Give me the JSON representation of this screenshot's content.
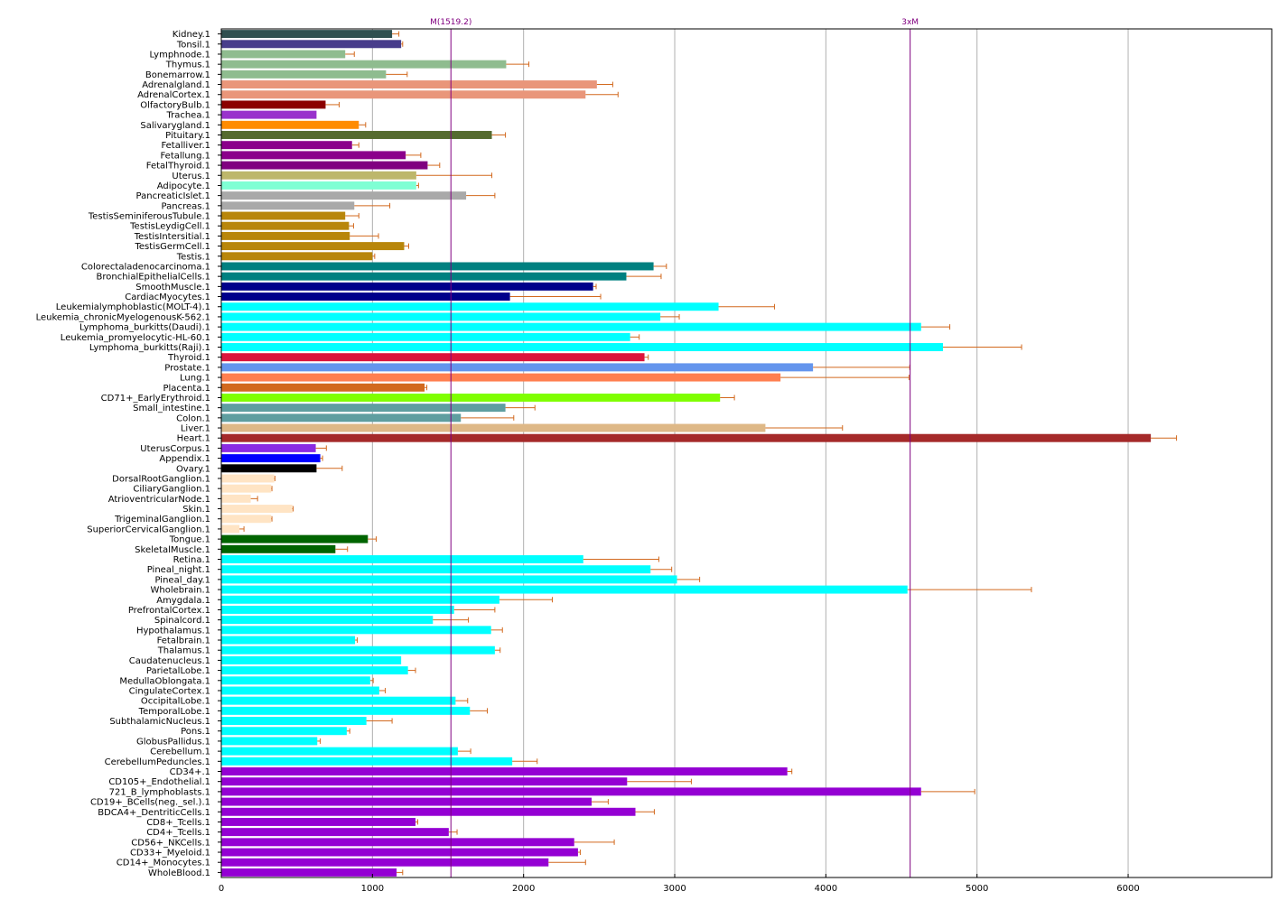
{
  "chart_data": {
    "type": "bar",
    "orientation": "horizontal",
    "xlim": [
      0,
      6950
    ],
    "x_ticks": [
      0,
      1000,
      2000,
      3000,
      4000,
      5000,
      6000
    ],
    "grid": "vertical",
    "error_bar_color": "#d2691e",
    "reference_lines": [
      {
        "label": "M(1519.2)",
        "value": 1519.2,
        "color": "#800080"
      },
      {
        "label": "3xM",
        "value": 4557.6,
        "color": "#800080"
      }
    ],
    "categories": [
      {
        "label": "Kidney.1",
        "value": 1130,
        "error": 45,
        "color": "#2f4f4f"
      },
      {
        "label": "Tonsil.1",
        "value": 1190,
        "error": 10,
        "color": "#483d8b"
      },
      {
        "label": "Lymphnode.1",
        "value": 820,
        "error": 60,
        "color": "#8fbc8f"
      },
      {
        "label": "Thymus.1",
        "value": 1885,
        "error": 150,
        "color": "#8fbc8f"
      },
      {
        "label": "Bonemarrow.1",
        "value": 1090,
        "error": 140,
        "color": "#8fbc8f"
      },
      {
        "label": "Adrenalgland.1",
        "value": 2485,
        "error": 105,
        "color": "#e9967a"
      },
      {
        "label": "AdrenalCortex.1",
        "value": 2410,
        "error": 215,
        "color": "#e9967a"
      },
      {
        "label": "OlfactoryBulb.1",
        "value": 690,
        "error": 90,
        "color": "#8b0000"
      },
      {
        "label": "Trachea.1",
        "value": 630,
        "error": 0,
        "color": "#9932cc"
      },
      {
        "label": "Salivarygland.1",
        "value": 910,
        "error": 45,
        "color": "#ff8c00"
      },
      {
        "label": "Pituitary.1",
        "value": 1790,
        "error": 90,
        "color": "#556b2f"
      },
      {
        "label": "Fetalliver.1",
        "value": 865,
        "error": 45,
        "color": "#8b008b"
      },
      {
        "label": "Fetallung.1",
        "value": 1220,
        "error": 100,
        "color": "#8b008b"
      },
      {
        "label": "FetalThyroid.1",
        "value": 1365,
        "error": 80,
        "color": "#800080"
      },
      {
        "label": "Uterus.1",
        "value": 1290,
        "error": 500,
        "color": "#bdb76b"
      },
      {
        "label": "Adipocyte.1",
        "value": 1290,
        "error": 15,
        "color": "#7fffd4"
      },
      {
        "label": "PancreaticIslet.1",
        "value": 1620,
        "error": 190,
        "color": "#a9a9a9"
      },
      {
        "label": "Pancreas.1",
        "value": 880,
        "error": 235,
        "color": "#a9a9a9"
      },
      {
        "label": "TestisSeminiferousTubule.1",
        "value": 820,
        "error": 90,
        "color": "#b8860b"
      },
      {
        "label": "TestisLeydigCell.1",
        "value": 845,
        "error": 30,
        "color": "#b8860b"
      },
      {
        "label": "TestisIntersitial.1",
        "value": 850,
        "error": 190,
        "color": "#b8860b"
      },
      {
        "label": "TestisGermCell.1",
        "value": 1210,
        "error": 30,
        "color": "#b8860b"
      },
      {
        "label": "Testis.1",
        "value": 1000,
        "error": 15,
        "color": "#b8860b"
      },
      {
        "label": "Colorectaladenocarcinoma.1",
        "value": 2860,
        "error": 85,
        "color": "#008080"
      },
      {
        "label": "BronchialEpithelialCells.1",
        "value": 2680,
        "error": 230,
        "color": "#008080"
      },
      {
        "label": "SmoothMuscle.1",
        "value": 2460,
        "error": 20,
        "color": "#00008b"
      },
      {
        "label": "CardiacMyocytes.1",
        "value": 1910,
        "error": 600,
        "color": "#00008b"
      },
      {
        "label": "Leukemialymphoblastic(MOLT-4).1",
        "value": 3290,
        "error": 370,
        "color": "#00ffff"
      },
      {
        "label": "Leukemia_chronicMyelogenousK-562.1",
        "value": 2905,
        "error": 125,
        "color": "#00ffff"
      },
      {
        "label": "Lymphoma_burkitts(Daudi).1",
        "value": 4630,
        "error": 190,
        "color": "#00ffff"
      },
      {
        "label": "Leukemia_promyelocytic-HL-60.1",
        "value": 2705,
        "error": 60,
        "color": "#00ffff"
      },
      {
        "label": "Lymphoma_burkitts(Raji).1",
        "value": 4775,
        "error": 520,
        "color": "#00ffff"
      },
      {
        "label": "Thyroid.1",
        "value": 2800,
        "error": 25,
        "color": "#dc143c"
      },
      {
        "label": "Prostate.1",
        "value": 3915,
        "error": 640,
        "color": "#6495ed"
      },
      {
        "label": "Lung.1",
        "value": 3700,
        "error": 850,
        "color": "#ff7f50"
      },
      {
        "label": "Placenta.1",
        "value": 1345,
        "error": 15,
        "color": "#d2691e"
      },
      {
        "label": "CD71+_EarlyErythroid.1",
        "value": 3300,
        "error": 95,
        "color": "#7fff00"
      },
      {
        "label": "Small_intestine.1",
        "value": 1880,
        "error": 195,
        "color": "#5f9ea0"
      },
      {
        "label": "Colon.1",
        "value": 1585,
        "error": 350,
        "color": "#5f9ea0"
      },
      {
        "label": "Liver.1",
        "value": 3600,
        "error": 510,
        "color": "#deb887"
      },
      {
        "label": "Heart.1",
        "value": 6150,
        "error": 170,
        "color": "#a52a2a"
      },
      {
        "label": "UterusCorpus.1",
        "value": 625,
        "error": 70,
        "color": "#8a2be2"
      },
      {
        "label": "Appendix.1",
        "value": 655,
        "error": 15,
        "color": "#0000ff"
      },
      {
        "label": "Ovary.1",
        "value": 630,
        "error": 170,
        "color": "#000000"
      },
      {
        "label": "DorsalRootGanglion.1",
        "value": 350,
        "error": 5,
        "color": "#ffe4c4"
      },
      {
        "label": "CiliaryGanglion.1",
        "value": 330,
        "error": 5,
        "color": "#ffe4c4"
      },
      {
        "label": "AtrioventricularNode.1",
        "value": 195,
        "error": 45,
        "color": "#ffe4c4"
      },
      {
        "label": "Skin.1",
        "value": 470,
        "error": 5,
        "color": "#ffe4c4"
      },
      {
        "label": "TrigeminalGanglion.1",
        "value": 330,
        "error": 5,
        "color": "#ffe4c4"
      },
      {
        "label": "SuperiorCervicalGanglion.1",
        "value": 120,
        "error": 30,
        "color": "#ffe4c4"
      },
      {
        "label": "Tongue.1",
        "value": 970,
        "error": 55,
        "color": "#006400"
      },
      {
        "label": "SkeletalMuscle.1",
        "value": 755,
        "error": 80,
        "color": "#006400"
      },
      {
        "label": "Retina.1",
        "value": 2395,
        "error": 500,
        "color": "#00ffff"
      },
      {
        "label": "Pineal_night.1",
        "value": 2840,
        "error": 140,
        "color": "#00ffff"
      },
      {
        "label": "Pineal_day.1",
        "value": 3015,
        "error": 150,
        "color": "#00ffff"
      },
      {
        "label": "Wholebrain.1",
        "value": 4540,
        "error": 820,
        "color": "#00ffff"
      },
      {
        "label": "Amygdala.1",
        "value": 1840,
        "error": 350,
        "color": "#00ffff"
      },
      {
        "label": "PrefrontalCortex.1",
        "value": 1540,
        "error": 270,
        "color": "#00ffff"
      },
      {
        "label": "Spinalcord.1",
        "value": 1400,
        "error": 235,
        "color": "#00ffff"
      },
      {
        "label": "Hypothalamus.1",
        "value": 1785,
        "error": 75,
        "color": "#00ffff"
      },
      {
        "label": "Fetalbrain.1",
        "value": 885,
        "error": 15,
        "color": "#00ffff"
      },
      {
        "label": "Thalamus.1",
        "value": 1810,
        "error": 35,
        "color": "#00ffff"
      },
      {
        "label": "Caudatenucleus.1",
        "value": 1190,
        "error": 0,
        "color": "#00ffff"
      },
      {
        "label": "ParietalLobe.1",
        "value": 1235,
        "error": 50,
        "color": "#00ffff"
      },
      {
        "label": "MedullaOblongata.1",
        "value": 985,
        "error": 20,
        "color": "#00ffff"
      },
      {
        "label": "CingulateCortex.1",
        "value": 1045,
        "error": 40,
        "color": "#00ffff"
      },
      {
        "label": "OccipitalLobe.1",
        "value": 1550,
        "error": 80,
        "color": "#00ffff"
      },
      {
        "label": "TemporalLobe.1",
        "value": 1645,
        "error": 115,
        "color": "#00ffff"
      },
      {
        "label": "SubthalamicNucleus.1",
        "value": 960,
        "error": 170,
        "color": "#00ffff"
      },
      {
        "label": "Pons.1",
        "value": 830,
        "error": 20,
        "color": "#00ffff"
      },
      {
        "label": "GlobusPallidus.1",
        "value": 635,
        "error": 20,
        "color": "#00ffff"
      },
      {
        "label": "Cerebellum.1",
        "value": 1565,
        "error": 85,
        "color": "#00ffff"
      },
      {
        "label": "CerebellumPeduncles.1",
        "value": 1925,
        "error": 165,
        "color": "#00ffff"
      },
      {
        "label": "CD34+.1",
        "value": 3745,
        "error": 30,
        "color": "#9400d3"
      },
      {
        "label": "CD105+_Endothelial.1",
        "value": 2685,
        "error": 425,
        "color": "#9400d3"
      },
      {
        "label": "721_B_lymphoblasts.1",
        "value": 4630,
        "error": 355,
        "color": "#9400d3"
      },
      {
        "label": "CD19+_BCells(neg._sel.).1",
        "value": 2450,
        "error": 110,
        "color": "#9400d3"
      },
      {
        "label": "BDCA4+_DentriticCells.1",
        "value": 2740,
        "error": 125,
        "color": "#9400d3"
      },
      {
        "label": "CD8+_Tcells.1",
        "value": 1285,
        "error": 15,
        "color": "#9400d3"
      },
      {
        "label": "CD4+_Tcells.1",
        "value": 1505,
        "error": 55,
        "color": "#9400d3"
      },
      {
        "label": "CD56+_NKCells.1",
        "value": 2335,
        "error": 265,
        "color": "#9400d3"
      },
      {
        "label": "CD33+_Myeloid.1",
        "value": 2360,
        "error": 15,
        "color": "#9400d3"
      },
      {
        "label": "CD14+_Monocytes.1",
        "value": 2165,
        "error": 245,
        "color": "#9400d3"
      },
      {
        "label": "WholeBlood.1",
        "value": 1160,
        "error": 40,
        "color": "#9400d3"
      }
    ]
  }
}
